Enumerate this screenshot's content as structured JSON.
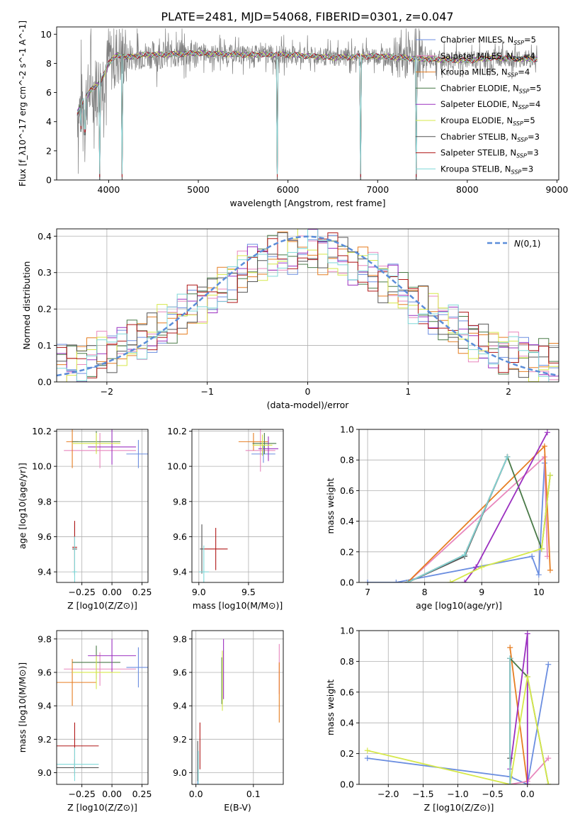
{
  "figure_title": "PLATE=2481, MJD=54068, FIBERID=0301, z=0.047",
  "series": [
    {
      "name": "Chabrier MILES",
      "nssp": 5,
      "color": "#6b8ee0"
    },
    {
      "name": "Salpeter MILES",
      "nssp": 4,
      "color": "#e887bd"
    },
    {
      "name": "Kroupa MILES",
      "nssp": 4,
      "color": "#e67e22"
    },
    {
      "name": "Chabrier ELODIE",
      "nssp": 5,
      "color": "#4a7a48"
    },
    {
      "name": "Salpeter ELODIE",
      "nssp": 4,
      "color": "#9b30c0"
    },
    {
      "name": "Kroupa ELODIE",
      "nssp": 5,
      "color": "#d6e84a"
    },
    {
      "name": "Chabrier STELIB",
      "nssp": 3,
      "color": "#555555"
    },
    {
      "name": "Salpeter STELIB",
      "nssp": 3,
      "color": "#b01818"
    },
    {
      "name": "Kroupa STELIB",
      "nssp": 3,
      "color": "#7fd8d8"
    }
  ],
  "legend_sub": "SSP",
  "chart_data": [
    {
      "id": "spectrum",
      "type": "line",
      "xlabel": "wavelength [Angstrom, rest frame]",
      "ylabel": "Flux [f_λ10^-17 erg cm^-2 s^-1 A^-1]",
      "xlim": [
        3420,
        9020
      ],
      "ylim": [
        0,
        10.5
      ],
      "xticks": [
        4000,
        5000,
        6000,
        7000,
        8000,
        9000
      ],
      "yticks": [
        0,
        2,
        4,
        6,
        8,
        10
      ],
      "data_color": "#808080",
      "data_range": [
        3650,
        8780
      ],
      "model_continuum": [
        [
          3650,
          4.6
        ],
        [
          3700,
          5.2
        ],
        [
          3800,
          6.2
        ],
        [
          3900,
          6.6
        ],
        [
          4000,
          8.0
        ],
        [
          4100,
          8.6
        ],
        [
          4200,
          8.4
        ],
        [
          4400,
          8.6
        ],
        [
          4600,
          8.6
        ],
        [
          5000,
          8.7
        ],
        [
          5500,
          8.6
        ],
        [
          6000,
          8.6
        ],
        [
          6500,
          8.4
        ],
        [
          7000,
          8.5
        ],
        [
          7500,
          8.3
        ],
        [
          8000,
          8.2
        ],
        [
          8300,
          8.4
        ],
        [
          8600,
          8.3
        ],
        [
          8780,
          8.3
        ]
      ],
      "model_drops": [
        [
          3690,
          3.3,
          9
        ],
        [
          3735,
          3.1,
          11
        ],
        [
          3900,
          0.0,
          8
        ],
        [
          4150,
          0.0,
          6
        ],
        [
          5880,
          0.0,
          8
        ],
        [
          6810,
          0.0,
          8
        ],
        [
          7430,
          0.0,
          5
        ]
      ]
    },
    {
      "id": "residuals",
      "type": "histogram",
      "xlabel": "(data-model)/error",
      "ylabel": "Normed distribution",
      "xlim": [
        -2.5,
        2.5
      ],
      "ylim": [
        0,
        0.42
      ],
      "xticks": [
        -2,
        -1,
        0,
        1,
        2
      ],
      "yticks": [
        0.0,
        0.1,
        0.2,
        0.3,
        0.4
      ],
      "bin_width": 0.1,
      "reference_label": "N(0,1)",
      "reference_color": "#5b8dd9"
    },
    {
      "id": "age_vs_Z",
      "type": "scatter",
      "xlabel": "Z [log10(Z/Z⊙)]",
      "ylabel": "age [log10(age/yr)]",
      "xlim": [
        -0.46,
        0.3
      ],
      "ylim": [
        9.34,
        10.21
      ],
      "xticks": [
        -0.25,
        0.0,
        0.25
      ],
      "yticks": [
        9.4,
        9.6,
        9.8,
        10.0,
        10.2
      ],
      "points": [
        {
          "s": 0,
          "x": 0.22,
          "y": 10.07,
          "ex": 0.1,
          "ey": 0.08
        },
        {
          "s": 1,
          "x": -0.1,
          "y": 10.09,
          "ex": 0.3,
          "ey": 0.1
        },
        {
          "s": 2,
          "x": -0.33,
          "y": 10.14,
          "ex": 0.05,
          "ey": 0.15
        },
        {
          "s": 3,
          "x": -0.13,
          "y": 10.14,
          "ex": 0.2,
          "ey": 0.06
        },
        {
          "s": 4,
          "x": 0.0,
          "y": 10.11,
          "ex": 0.2,
          "ey": 0.1
        },
        {
          "s": 5,
          "x": -0.13,
          "y": 10.13,
          "ex": 0.2,
          "ey": 0.06
        },
        {
          "s": 6,
          "x": -0.31,
          "y": 9.53,
          "ex": 0.02,
          "ey": 0.15
        },
        {
          "s": 7,
          "x": -0.31,
          "y": 9.54,
          "ex": 0.02,
          "ey": 0.15
        },
        {
          "s": 8,
          "x": -0.31,
          "y": 9.4,
          "ex": 0.02,
          "ey": 0.2
        }
      ]
    },
    {
      "id": "age_vs_mass",
      "type": "scatter",
      "xlabel": "mass [log10(M/M⊙)]",
      "ylabel": "",
      "xlim": [
        8.93,
        9.85
      ],
      "ylim": [
        9.34,
        10.21
      ],
      "xticks": [
        9.0,
        9.5
      ],
      "yticks": [
        9.4,
        9.6,
        9.8,
        10.0,
        10.2
      ],
      "points": [
        {
          "s": 0,
          "x": 9.65,
          "y": 10.07,
          "ex": 0.12,
          "ey": 0.05
        },
        {
          "s": 1,
          "x": 9.62,
          "y": 10.09,
          "ex": 0.15,
          "ey": 0.12
        },
        {
          "s": 2,
          "x": 9.55,
          "y": 10.14,
          "ex": 0.15,
          "ey": 0.05
        },
        {
          "s": 3,
          "x": 9.66,
          "y": 10.13,
          "ex": 0.12,
          "ey": 0.06
        },
        {
          "s": 4,
          "x": 9.7,
          "y": 10.1,
          "ex": 0.1,
          "ey": 0.07
        },
        {
          "s": 5,
          "x": 9.64,
          "y": 10.12,
          "ex": 0.1,
          "ey": 0.06
        },
        {
          "s": 6,
          "x": 9.03,
          "y": 9.53,
          "ex": 0.02,
          "ey": 0.14
        },
        {
          "s": 7,
          "x": 9.17,
          "y": 9.53,
          "ex": 0.12,
          "ey": 0.12
        },
        {
          "s": 8,
          "x": 9.05,
          "y": 9.4,
          "ex": 0.05,
          "ey": 0.15
        }
      ]
    },
    {
      "id": "mw_vs_age",
      "type": "line",
      "xlabel": "age [log10(age/yr)]",
      "ylabel": "mass weight",
      "xlim": [
        6.85,
        10.35
      ],
      "ylim": [
        0,
        1.0
      ],
      "xticks": [
        7,
        8,
        9,
        10
      ],
      "yticks": [
        0.0,
        0.2,
        0.4,
        0.6,
        0.8,
        1.0
      ],
      "lines": [
        {
          "s": 0,
          "pts": [
            [
              7.0,
              0.0
            ],
            [
              7.5,
              0.0
            ],
            [
              9.88,
              0.17
            ],
            [
              10.0,
              0.05
            ],
            [
              10.1,
              0.78
            ]
          ]
        },
        {
          "s": 1,
          "pts": [
            [
              7.7,
              0.0
            ],
            [
              10.1,
              0.82
            ],
            [
              10.15,
              0.17
            ]
          ]
        },
        {
          "s": 2,
          "pts": [
            [
              7.7,
              0.0
            ],
            [
              10.1,
              0.89
            ],
            [
              10.2,
              0.08
            ]
          ]
        },
        {
          "s": 3,
          "pts": [
            [
              7.7,
              0.0
            ],
            [
              8.7,
              0.18
            ],
            [
              9.45,
              0.82
            ],
            [
              10.05,
              0.22
            ],
            [
              10.2,
              0.7
            ]
          ]
        },
        {
          "s": 4,
          "pts": [
            [
              8.7,
              0.0
            ],
            [
              8.9,
              0.1
            ],
            [
              10.15,
              0.98
            ]
          ]
        },
        {
          "s": 5,
          "pts": [
            [
              8.45,
              0.0
            ],
            [
              9.0,
              0.1
            ],
            [
              10.05,
              0.22
            ],
            [
              10.2,
              0.7
            ]
          ]
        },
        {
          "s": 6,
          "pts": [
            [
              7.7,
              0.0
            ],
            [
              8.7,
              0.17
            ],
            [
              9.45,
              0.82
            ]
          ]
        },
        {
          "s": 7,
          "pts": [
            [
              7.7,
              0.0
            ],
            [
              8.7,
              0.18
            ],
            [
              9.45,
              0.82
            ]
          ]
        },
        {
          "s": 8,
          "pts": [
            [
              7.7,
              0.0
            ],
            [
              8.7,
              0.18
            ],
            [
              9.45,
              0.82
            ]
          ]
        }
      ]
    },
    {
      "id": "mass_vs_Z",
      "type": "scatter",
      "xlabel": "Z [log10(Z/Z⊙)]",
      "ylabel": "mass [log10(M/M⊙)]",
      "xlim": [
        -0.46,
        0.3
      ],
      "ylim": [
        8.93,
        9.85
      ],
      "xticks": [
        -0.25,
        0.0,
        0.25
      ],
      "yticks": [
        9.0,
        9.2,
        9.4,
        9.6,
        9.8
      ],
      "points": [
        {
          "s": 0,
          "x": 0.22,
          "y": 9.63,
          "ex": 0.1,
          "ey": 0.12
        },
        {
          "s": 1,
          "x": -0.1,
          "y": 9.62,
          "ex": 0.3,
          "ey": 0.1
        },
        {
          "s": 2,
          "x": -0.33,
          "y": 9.54,
          "ex": 0.2,
          "ey": 0.14
        },
        {
          "s": 3,
          "x": -0.13,
          "y": 9.66,
          "ex": 0.2,
          "ey": 0.1
        },
        {
          "s": 4,
          "x": 0.0,
          "y": 9.7,
          "ex": 0.2,
          "ey": 0.1
        },
        {
          "s": 5,
          "x": -0.13,
          "y": 9.6,
          "ex": 0.2,
          "ey": 0.1
        },
        {
          "s": 6,
          "x": -0.31,
          "y": 9.03,
          "ex": 0.2,
          "ey": 0.05
        },
        {
          "s": 7,
          "x": -0.31,
          "y": 9.16,
          "ex": 0.2,
          "ey": 0.14
        },
        {
          "s": 8,
          "x": -0.31,
          "y": 9.05,
          "ex": 0.2,
          "ey": 0.1
        }
      ]
    },
    {
      "id": "mass_vs_ebv",
      "type": "scatter",
      "xlabel": "E(B-V)",
      "ylabel": "",
      "xlim": [
        -0.007,
        0.152
      ],
      "ylim": [
        8.93,
        9.85
      ],
      "xticks": [
        0.0,
        0.1
      ],
      "yticks": [
        9.0,
        9.2,
        9.4,
        9.6,
        9.8
      ],
      "points": [
        {
          "s": 0,
          "x": 0.003,
          "y": 9.03,
          "ex": 0,
          "ey": 0.1
        },
        {
          "s": 1,
          "x": 0.145,
          "y": 9.62,
          "ex": 0,
          "ey": 0.15
        },
        {
          "s": 2,
          "x": 0.145,
          "y": 9.48,
          "ex": 0,
          "ey": 0.18
        },
        {
          "s": 3,
          "x": 0.045,
          "y": 9.55,
          "ex": 0,
          "ey": 0.14
        },
        {
          "s": 4,
          "x": 0.048,
          "y": 9.62,
          "ex": 0,
          "ey": 0.18
        },
        {
          "s": 5,
          "x": 0.046,
          "y": 9.55,
          "ex": 0,
          "ey": 0.18
        },
        {
          "s": 6,
          "x": 0.003,
          "y": 9.07,
          "ex": 0,
          "ey": 0.12
        },
        {
          "s": 7,
          "x": 0.007,
          "y": 9.16,
          "ex": 0,
          "ey": 0.14
        },
        {
          "s": 8,
          "x": 0.004,
          "y": 9.03,
          "ex": 0,
          "ey": 0.1
        }
      ]
    },
    {
      "id": "mw_vs_Z",
      "type": "line",
      "xlabel": "Z [log10(Z/Z⊙)]",
      "ylabel": "mass weight",
      "xlim": [
        -2.42,
        0.45
      ],
      "ylim": [
        0,
        1.0
      ],
      "xticks": [
        -2.0,
        -1.5,
        -1.0,
        -0.5,
        0.0
      ],
      "yticks": [
        0.0,
        0.2,
        0.4,
        0.6,
        0.8,
        1.0
      ],
      "lines": [
        {
          "s": 0,
          "pts": [
            [
              -2.3,
              0.17
            ],
            [
              -0.25,
              0.05
            ],
            [
              0.0,
              0.0
            ],
            [
              0.3,
              0.78
            ]
          ]
        },
        {
          "s": 1,
          "pts": [
            [
              -0.25,
              0.0
            ],
            [
              0.0,
              0.02
            ],
            [
              0.3,
              0.17
            ]
          ]
        },
        {
          "s": 2,
          "pts": [
            [
              -0.25,
              0.89
            ],
            [
              0.0,
              0.0
            ]
          ]
        },
        {
          "s": 3,
          "pts": [
            [
              -0.25,
              0.82
            ],
            [
              0.0,
              0.7
            ],
            [
              0.3,
              0.0
            ]
          ]
        },
        {
          "s": 4,
          "pts": [
            [
              -0.25,
              0.1
            ],
            [
              0.0,
              0.98
            ],
            [
              0.0,
              0.0
            ]
          ]
        },
        {
          "s": 5,
          "pts": [
            [
              -2.3,
              0.22
            ],
            [
              -0.25,
              0.0
            ],
            [
              0.0,
              0.7
            ],
            [
              0.3,
              0.0
            ]
          ]
        },
        {
          "s": 6,
          "pts": [
            [
              -0.25,
              0.82
            ],
            [
              -0.25,
              0.17
            ]
          ]
        },
        {
          "s": 7,
          "pts": [
            [
              -0.25,
              0.0
            ],
            [
              -0.25,
              0.82
            ]
          ]
        },
        {
          "s": 8,
          "pts": [
            [
              -0.25,
              0.0
            ],
            [
              -0.25,
              0.82
            ]
          ]
        }
      ]
    }
  ]
}
